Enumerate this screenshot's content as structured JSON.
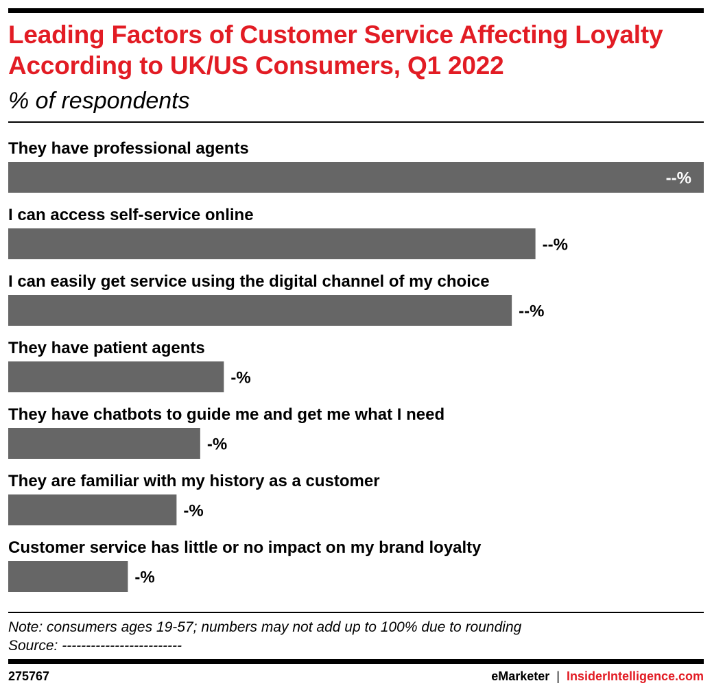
{
  "title": "Leading Factors of Customer Service Affecting Loyalty According to UK/US Consumers, Q1 2022",
  "subtitle": "% of respondents",
  "note": "Note: consumers ages 19-57; numbers may not add up to 100% due to rounding",
  "source": "Source: -------------------------",
  "chart_id": "275767",
  "brand": {
    "emarketer": "eMarketer",
    "separator": "|",
    "insider": "InsiderIntelligence.com"
  },
  "colors": {
    "title": "#e21c24",
    "bar": "#666666",
    "text": "#000000",
    "value_inside": "#ffffff"
  },
  "chart_data": {
    "type": "bar",
    "orientation": "horizontal",
    "title": "Leading Factors of Customer Service Affecting Loyalty According to UK/US Consumers, Q1 2022",
    "subtitle": "% of respondents",
    "xlabel": "",
    "ylabel": "",
    "grid": false,
    "legend": "none",
    "categories": [
      "They have professional agents",
      "I can access self-service online",
      "I can easily get service using the digital channel of my choice",
      "They have patient agents",
      "They have chatbots to guide me and get me what I need",
      "They are familiar with my history as a customer",
      "Customer service has little or no impact on my brand loyalty"
    ],
    "values": [
      100,
      75.8,
      72.4,
      31,
      27.6,
      24.2,
      17.2
    ],
    "value_labels": [
      "--%",
      "--%",
      "--%",
      "-%",
      "-%",
      "-%",
      "-%"
    ],
    "xlim": [
      0,
      100
    ]
  }
}
